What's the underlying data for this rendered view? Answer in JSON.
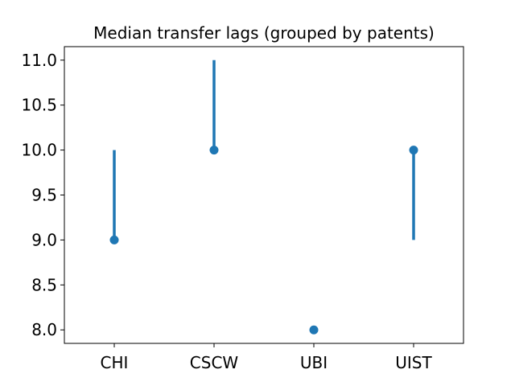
{
  "chart_data": {
    "type": "scatter",
    "title": "Median transfer lags (grouped by patents)",
    "xlabel": "",
    "ylabel": "",
    "categories": [
      "CHI",
      "CSCW",
      "UBI",
      "UIST"
    ],
    "points": [
      9.0,
      10.0,
      8.0,
      10.0
    ],
    "interval_low": [
      9.0,
      10.0,
      8.0,
      9.0
    ],
    "interval_high": [
      10.0,
      11.0,
      8.0,
      10.0
    ],
    "ylim": [
      7.85,
      11.15
    ],
    "yticks": [
      "8.0",
      "8.5",
      "9.0",
      "9.5",
      "10.0",
      "10.5",
      "11.0"
    ],
    "grid": false,
    "legend": "none",
    "color": "#1f77b4"
  }
}
